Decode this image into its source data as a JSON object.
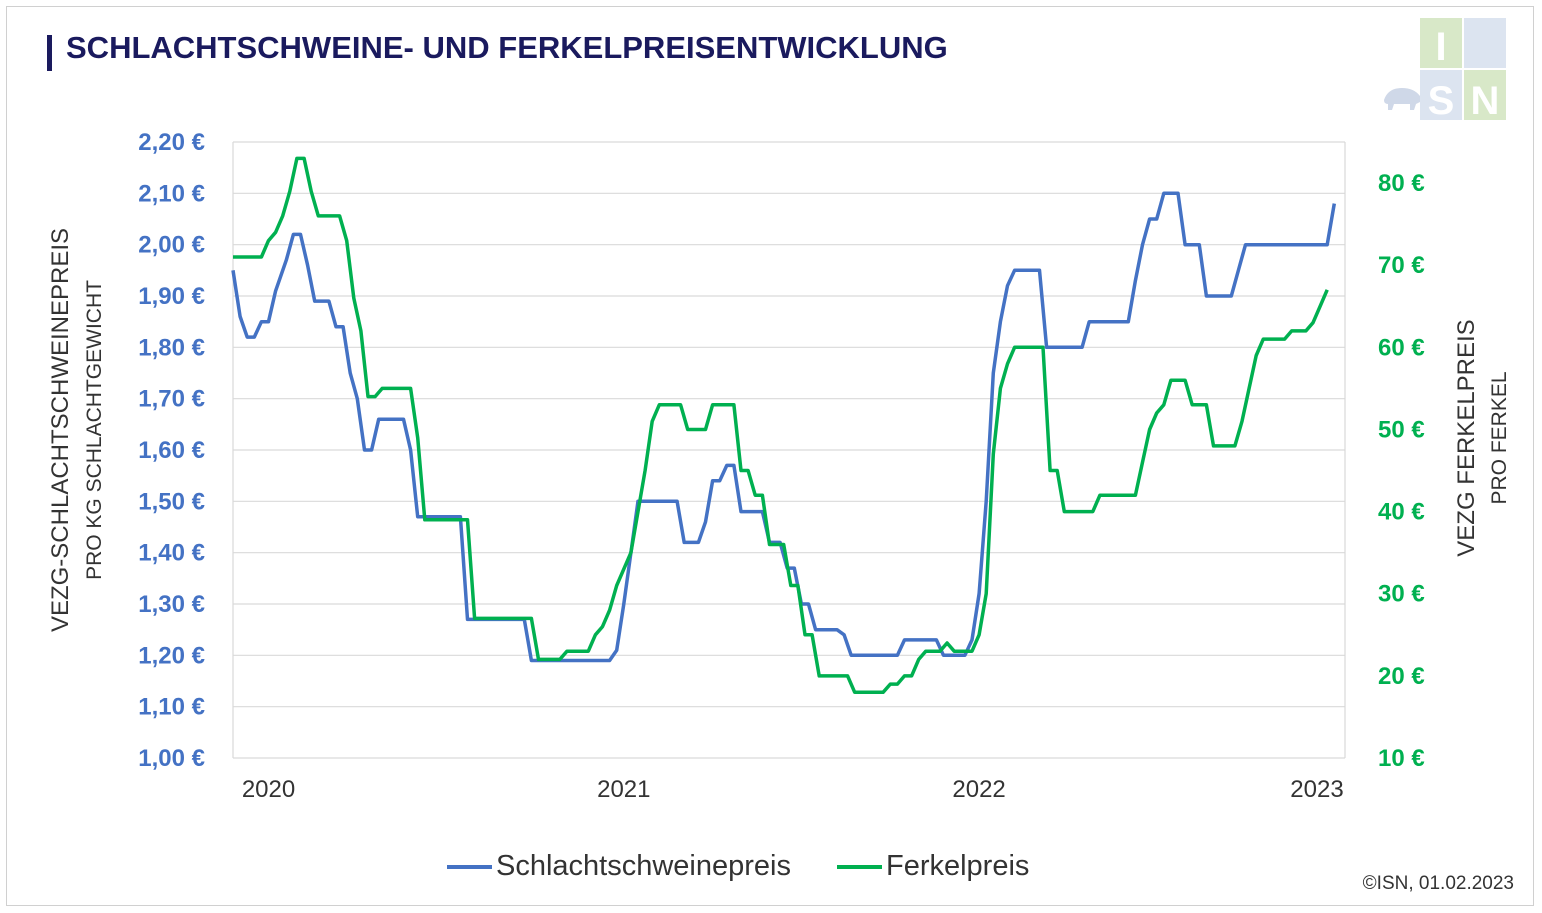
{
  "title": "SCHLACHTSCHWEINE- UND FERKELPREISENTWICKLUNG",
  "left_axis_label_main": "VEZG-SCHLACHTSCHWEINEPREIS",
  "left_axis_label_sub": "PRO KG SCHLACHTGEWICHT",
  "right_axis_label_main": "VEZG FERKELPREIS",
  "right_axis_label_sub": "PRO FERKEL",
  "legend": {
    "series1": "Schlachtschweinepreis",
    "series2": "Ferkelpreis"
  },
  "copyright": "©ISN, 01.02.2023",
  "logo_text": "ISN",
  "colors": {
    "series1": "#4472c4",
    "series2": "#00b050",
    "title": "#1a1a5e",
    "grid": "#d9d9d9"
  },
  "chart_data": {
    "type": "line",
    "x_tick_labels": [
      "2020",
      "2021",
      "2022",
      "2023"
    ],
    "x_range_years": [
      2019.9,
      2023.03
    ],
    "y_left": {
      "ticks": [
        "1,00 €",
        "1,10 €",
        "1,20 €",
        "1,30 €",
        "1,40 €",
        "1,50 €",
        "1,60 €",
        "1,70 €",
        "1,80 €",
        "1,90 €",
        "2,00 €",
        "2,10 €",
        "2,20 €"
      ],
      "range": [
        1.0,
        2.2
      ]
    },
    "y_right": {
      "ticks": [
        "10 €",
        "20 €",
        "30 €",
        "40 €",
        "50 €",
        "60 €",
        "70 €",
        "80 €"
      ],
      "range": [
        10,
        85
      ]
    },
    "grid": true,
    "legend_position": "bottom",
    "series": [
      {
        "name": "Schlachtschweinepreis",
        "axis": "left",
        "points": [
          [
            2019.9,
            1.95
          ],
          [
            2019.92,
            1.86
          ],
          [
            2019.94,
            1.82
          ],
          [
            2019.96,
            1.82
          ],
          [
            2019.98,
            1.85
          ],
          [
            2020.0,
            1.85
          ],
          [
            2020.02,
            1.91
          ],
          [
            2020.05,
            1.97
          ],
          [
            2020.07,
            2.02
          ],
          [
            2020.09,
            2.02
          ],
          [
            2020.11,
            1.96
          ],
          [
            2020.13,
            1.89
          ],
          [
            2020.17,
            1.89
          ],
          [
            2020.19,
            1.84
          ],
          [
            2020.21,
            1.84
          ],
          [
            2020.23,
            1.75
          ],
          [
            2020.25,
            1.7
          ],
          [
            2020.27,
            1.6
          ],
          [
            2020.29,
            1.6
          ],
          [
            2020.31,
            1.66
          ],
          [
            2020.38,
            1.66
          ],
          [
            2020.4,
            1.6
          ],
          [
            2020.42,
            1.47
          ],
          [
            2020.48,
            1.47
          ],
          [
            2020.54,
            1.47
          ],
          [
            2020.56,
            1.27
          ],
          [
            2020.65,
            1.27
          ],
          [
            2020.72,
            1.27
          ],
          [
            2020.74,
            1.19
          ],
          [
            2020.96,
            1.19
          ],
          [
            2020.98,
            1.21
          ],
          [
            2021.0,
            1.3
          ],
          [
            2021.02,
            1.4
          ],
          [
            2021.04,
            1.5
          ],
          [
            2021.15,
            1.5
          ],
          [
            2021.17,
            1.42
          ],
          [
            2021.21,
            1.42
          ],
          [
            2021.23,
            1.46
          ],
          [
            2021.25,
            1.54
          ],
          [
            2021.27,
            1.54
          ],
          [
            2021.29,
            1.57
          ],
          [
            2021.31,
            1.57
          ],
          [
            2021.33,
            1.48
          ],
          [
            2021.39,
            1.48
          ],
          [
            2021.41,
            1.42
          ],
          [
            2021.44,
            1.42
          ],
          [
            2021.46,
            1.37
          ],
          [
            2021.48,
            1.37
          ],
          [
            2021.5,
            1.3
          ],
          [
            2021.52,
            1.3
          ],
          [
            2021.54,
            1.25
          ],
          [
            2021.6,
            1.25
          ],
          [
            2021.62,
            1.24
          ],
          [
            2021.64,
            1.2
          ],
          [
            2021.77,
            1.2
          ],
          [
            2021.79,
            1.23
          ],
          [
            2021.88,
            1.23
          ],
          [
            2021.9,
            1.2
          ],
          [
            2021.96,
            1.2
          ],
          [
            2021.98,
            1.23
          ],
          [
            2022.0,
            1.32
          ],
          [
            2022.02,
            1.5
          ],
          [
            2022.04,
            1.75
          ],
          [
            2022.06,
            1.85
          ],
          [
            2022.08,
            1.92
          ],
          [
            2022.1,
            1.95
          ],
          [
            2022.17,
            1.95
          ],
          [
            2022.19,
            1.8
          ],
          [
            2022.29,
            1.8
          ],
          [
            2022.31,
            1.85
          ],
          [
            2022.42,
            1.85
          ],
          [
            2022.44,
            1.93
          ],
          [
            2022.46,
            2.0
          ],
          [
            2022.48,
            2.05
          ],
          [
            2022.5,
            2.05
          ],
          [
            2022.52,
            2.1
          ],
          [
            2022.56,
            2.1
          ],
          [
            2022.58,
            2.0
          ],
          [
            2022.62,
            2.0
          ],
          [
            2022.64,
            1.9
          ],
          [
            2022.71,
            1.9
          ],
          [
            2022.73,
            1.95
          ],
          [
            2022.75,
            2.0
          ],
          [
            2022.94,
            2.0
          ],
          [
            2022.96,
            2.0
          ],
          [
            2022.98,
            2.0
          ],
          [
            2023.0,
            2.08
          ]
        ]
      },
      {
        "name": "Ferkelpreis",
        "axis": "right",
        "points": [
          [
            2019.9,
            71
          ],
          [
            2019.98,
            71
          ],
          [
            2020.0,
            73
          ],
          [
            2020.02,
            74
          ],
          [
            2020.04,
            76
          ],
          [
            2020.06,
            79
          ],
          [
            2020.08,
            83
          ],
          [
            2020.1,
            83
          ],
          [
            2020.12,
            79
          ],
          [
            2020.14,
            76
          ],
          [
            2020.2,
            76
          ],
          [
            2020.22,
            73
          ],
          [
            2020.24,
            66
          ],
          [
            2020.26,
            62
          ],
          [
            2020.28,
            54
          ],
          [
            2020.3,
            54
          ],
          [
            2020.32,
            55
          ],
          [
            2020.4,
            55
          ],
          [
            2020.42,
            49
          ],
          [
            2020.44,
            39
          ],
          [
            2020.56,
            39
          ],
          [
            2020.58,
            27
          ],
          [
            2020.74,
            27
          ],
          [
            2020.76,
            22
          ],
          [
            2020.82,
            22
          ],
          [
            2020.84,
            23
          ],
          [
            2020.9,
            23
          ],
          [
            2020.92,
            25
          ],
          [
            2020.94,
            26
          ],
          [
            2020.96,
            28
          ],
          [
            2020.98,
            31
          ],
          [
            2021.0,
            33
          ],
          [
            2021.02,
            35
          ],
          [
            2021.04,
            40
          ],
          [
            2021.06,
            45
          ],
          [
            2021.08,
            51
          ],
          [
            2021.1,
            53
          ],
          [
            2021.16,
            53
          ],
          [
            2021.18,
            50
          ],
          [
            2021.23,
            50
          ],
          [
            2021.25,
            53
          ],
          [
            2021.31,
            53
          ],
          [
            2021.33,
            45
          ],
          [
            2021.35,
            45
          ],
          [
            2021.37,
            42
          ],
          [
            2021.39,
            42
          ],
          [
            2021.41,
            36
          ],
          [
            2021.45,
            36
          ],
          [
            2021.47,
            31
          ],
          [
            2021.49,
            31
          ],
          [
            2021.51,
            25
          ],
          [
            2021.53,
            25
          ],
          [
            2021.55,
            20
          ],
          [
            2021.63,
            20
          ],
          [
            2021.65,
            18
          ],
          [
            2021.73,
            18
          ],
          [
            2021.75,
            19
          ],
          [
            2021.77,
            19
          ],
          [
            2021.79,
            20
          ],
          [
            2021.81,
            20
          ],
          [
            2021.83,
            22
          ],
          [
            2021.85,
            23
          ],
          [
            2021.89,
            23
          ],
          [
            2021.91,
            24
          ],
          [
            2021.93,
            23
          ],
          [
            2021.98,
            23
          ],
          [
            2022.0,
            25
          ],
          [
            2022.02,
            30
          ],
          [
            2022.04,
            47
          ],
          [
            2022.06,
            55
          ],
          [
            2022.08,
            58
          ],
          [
            2022.1,
            60
          ],
          [
            2022.18,
            60
          ],
          [
            2022.2,
            45
          ],
          [
            2022.22,
            45
          ],
          [
            2022.24,
            40
          ],
          [
            2022.32,
            40
          ],
          [
            2022.34,
            42
          ],
          [
            2022.44,
            42
          ],
          [
            2022.46,
            46
          ],
          [
            2022.48,
            50
          ],
          [
            2022.5,
            52
          ],
          [
            2022.52,
            53
          ],
          [
            2022.54,
            56
          ],
          [
            2022.58,
            56
          ],
          [
            2022.6,
            53
          ],
          [
            2022.64,
            53
          ],
          [
            2022.66,
            48
          ],
          [
            2022.72,
            48
          ],
          [
            2022.74,
            51
          ],
          [
            2022.76,
            55
          ],
          [
            2022.78,
            59
          ],
          [
            2022.8,
            61
          ],
          [
            2022.86,
            61
          ],
          [
            2022.88,
            62
          ],
          [
            2022.92,
            62
          ],
          [
            2022.94,
            63
          ],
          [
            2022.96,
            65
          ],
          [
            2022.98,
            67
          ]
        ]
      }
    ]
  }
}
